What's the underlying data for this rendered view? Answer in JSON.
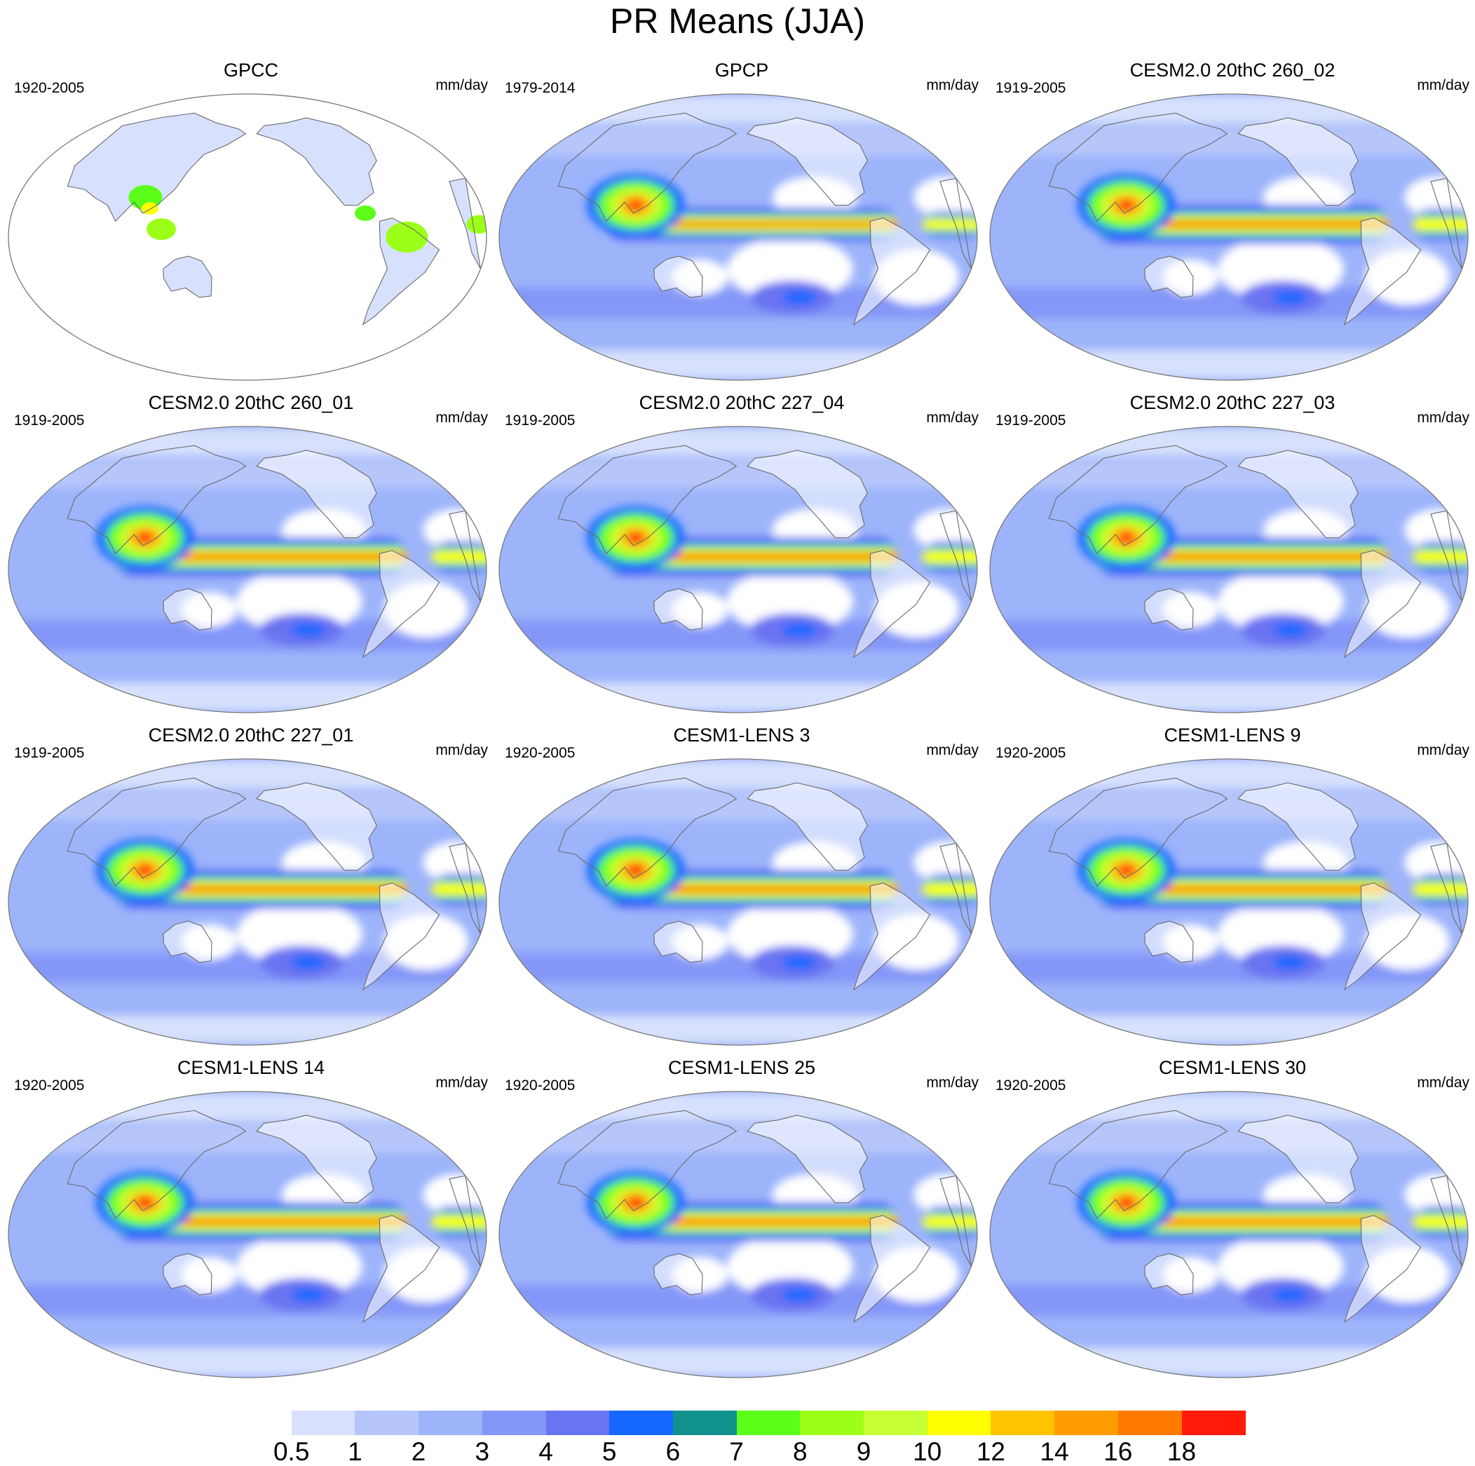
{
  "title": "PR Means (JJA)",
  "panels": [
    {
      "title": "GPCC",
      "period": "1920-2005",
      "units": "mm/day",
      "kind": "land"
    },
    {
      "title": "GPCP",
      "period": "1979-2014",
      "units": "mm/day",
      "kind": "obs"
    },
    {
      "title": "CESM2.0 20thC 260_02",
      "period": "1919-2005",
      "units": "mm/day",
      "kind": "model"
    },
    {
      "title": "CESM2.0 20thC 260_01",
      "period": "1919-2005",
      "units": "mm/day",
      "kind": "model"
    },
    {
      "title": "CESM2.0 20thC 227_04",
      "period": "1919-2005",
      "units": "mm/day",
      "kind": "model"
    },
    {
      "title": "CESM2.0 20thC 227_03",
      "period": "1919-2005",
      "units": "mm/day",
      "kind": "model"
    },
    {
      "title": "CESM2.0 20thC 227_01",
      "period": "1919-2005",
      "units": "mm/day",
      "kind": "model"
    },
    {
      "title": "CESM1-LENS 3",
      "period": "1920-2005",
      "units": "mm/day",
      "kind": "model"
    },
    {
      "title": "CESM1-LENS 9",
      "period": "1920-2005",
      "units": "mm/day",
      "kind": "model"
    },
    {
      "title": "CESM1-LENS 14",
      "period": "1920-2005",
      "units": "mm/day",
      "kind": "model"
    },
    {
      "title": "CESM1-LENS 25",
      "period": "1920-2005",
      "units": "mm/day",
      "kind": "model"
    },
    {
      "title": "CESM1-LENS 30",
      "period": "1920-2005",
      "units": "mm/day",
      "kind": "model"
    }
  ],
  "colorbar": {
    "levels": [
      "0.5",
      "1",
      "2",
      "3",
      "4",
      "5",
      "6",
      "7",
      "8",
      "9",
      "10",
      "12",
      "14",
      "16",
      "18"
    ],
    "colors": [
      "#ffffff",
      "#d7e1fd",
      "#b6c6fb",
      "#9db4fb",
      "#8497f8",
      "#6a73f1",
      "#1567ff",
      "#11928f",
      "#5bff1a",
      "#9cff17",
      "#c5ff34",
      "#ffff00",
      "#ffc400",
      "#ff9c00",
      "#ff7a00",
      "#ff1a0a"
    ]
  }
}
